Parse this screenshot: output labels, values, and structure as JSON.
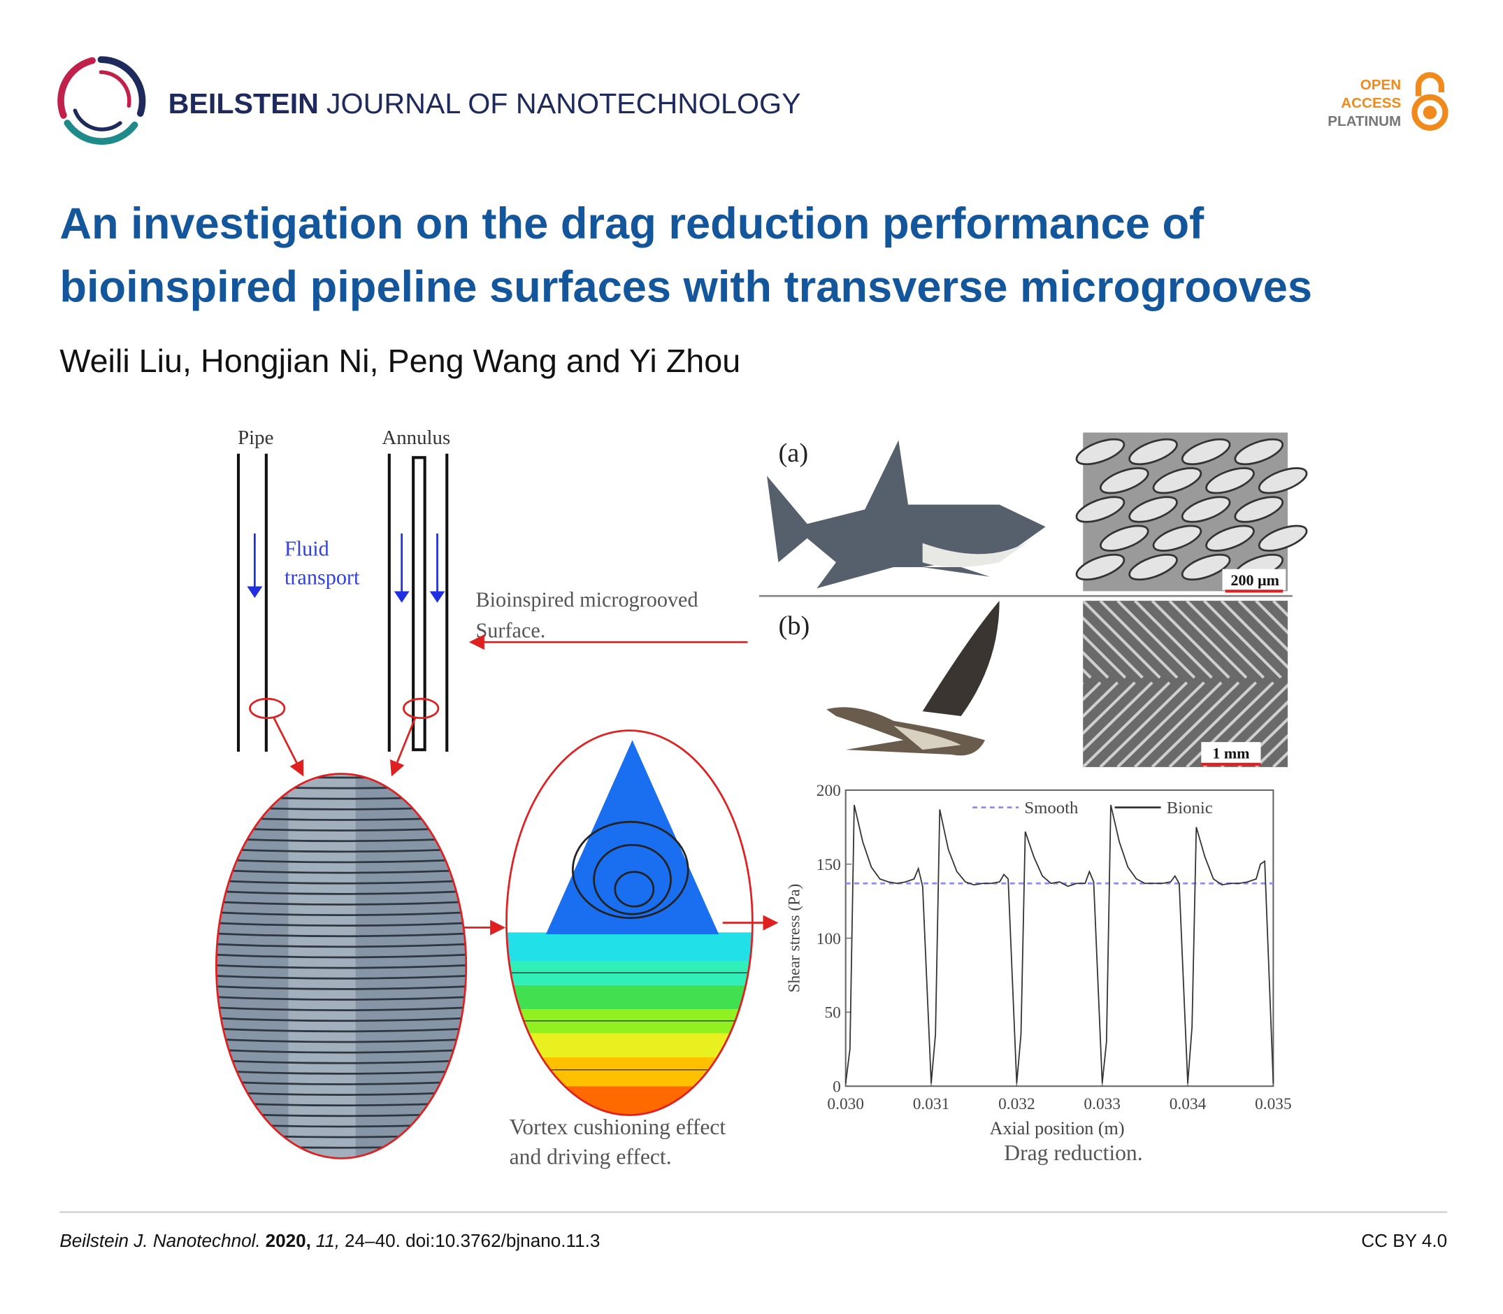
{
  "header": {
    "journal_bold": "BEILSTEIN",
    "journal_rest": "JOURNAL OF NANOTECHNOLOGY",
    "badge": [
      "OPEN",
      "ACCESS",
      "PLATINUM"
    ]
  },
  "title": [
    "An investigation on the drag reduction performance of",
    "bioinspired pipeline surfaces with transverse microgrooves"
  ],
  "authors": "Weili Liu, Hongjian Ni, Peng Wang and Yi Zhou",
  "figure": {
    "pipe": "Pipe",
    "annulus": "Annulus",
    "fluid": [
      "Fluid",
      "transport"
    ],
    "surface": [
      "Bioinspired microgrooved",
      "Surface."
    ],
    "panel_a": "(a)",
    "panel_b": "(b)",
    "scale_a": "200 µm",
    "scale_b": "1 mm",
    "vortex": [
      "Vortex cushioning effect",
      "and driving effect."
    ],
    "drag": "Drag reduction."
  },
  "chart_data": {
    "type": "line",
    "xlabel": "Axial position (m)",
    "ylabel": "Shear stress (Pa)",
    "xlim": [
      0.03,
      0.035
    ],
    "ylim": [
      0,
      200
    ],
    "xticks": [
      {
        "value": 0.03,
        "label": "0.030"
      },
      0.031,
      0.032,
      0.033,
      0.034,
      0.035
    ],
    "yticks": [
      0,
      50,
      100,
      150,
      200
    ],
    "series": [
      {
        "name": "Smooth",
        "color": "#8a8cf5",
        "line_style": "dashed",
        "x": [
          0.03,
          0.035
        ],
        "values": [
          137,
          137
        ]
      },
      {
        "name": "Bionic",
        "color": "#333333",
        "line_style": "solid",
        "x": [
          0.03,
          0.03005,
          0.0301,
          0.0302,
          0.0303,
          0.0304,
          0.0305,
          0.0306,
          0.0307,
          0.0308,
          0.03085,
          0.0309,
          0.031,
          0.03105,
          0.0311,
          0.0312,
          0.0313,
          0.0314,
          0.0315,
          0.0316,
          0.0317,
          0.0318,
          0.03185,
          0.0319,
          0.032,
          0.03205,
          0.0321,
          0.0322,
          0.0323,
          0.0324,
          0.0325,
          0.0326,
          0.0327,
          0.0328,
          0.03285,
          0.0329,
          0.033,
          0.03305,
          0.0331,
          0.0332,
          0.0333,
          0.0334,
          0.0335,
          0.0336,
          0.0337,
          0.0338,
          0.03385,
          0.0339,
          0.034,
          0.03405,
          0.0341,
          0.0342,
          0.0343,
          0.0344,
          0.0345,
          0.0346,
          0.0347,
          0.0348,
          0.03485,
          0.0349,
          0.035
        ],
        "values": [
          2,
          25,
          190,
          165,
          148,
          140,
          138,
          137,
          138,
          140,
          147,
          135,
          2,
          35,
          187,
          160,
          145,
          138,
          136,
          137,
          137,
          138,
          143,
          140,
          2,
          35,
          172,
          155,
          142,
          137,
          138,
          135,
          137,
          137,
          145,
          138,
          2,
          30,
          190,
          165,
          148,
          140,
          137,
          137,
          137,
          138,
          142,
          137,
          2,
          40,
          175,
          155,
          140,
          136,
          137,
          137,
          138,
          140,
          150,
          152,
          2
        ]
      }
    ]
  },
  "footer": {
    "journal": "Beilstein J. Nanotechnol.",
    "year": "2020,",
    "volume": "11,",
    "pages": "24–40. doi:10.3762/bjnano.11.3",
    "license": "CC BY 4.0"
  }
}
